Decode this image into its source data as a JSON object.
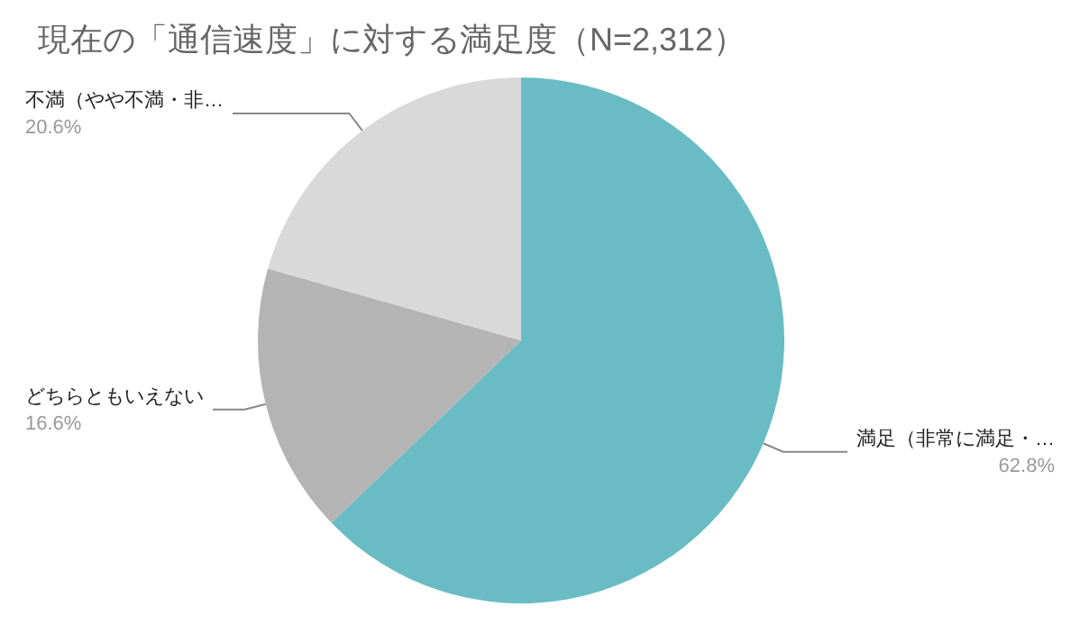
{
  "chart_data": {
    "type": "pie",
    "title": "現在の「通信速度」に対する満足度（N=2,312）",
    "categories": [
      "満足（非常に満足・…",
      "どちらともいえない",
      "不満（やや不満・非…"
    ],
    "values": [
      62.8,
      16.6,
      20.6
    ],
    "value_labels": [
      "62.8%",
      "16.6%",
      "20.6%"
    ],
    "colors": [
      "#6abcc4",
      "#b4b4b4",
      "#d9d9d9"
    ],
    "legend": false
  }
}
